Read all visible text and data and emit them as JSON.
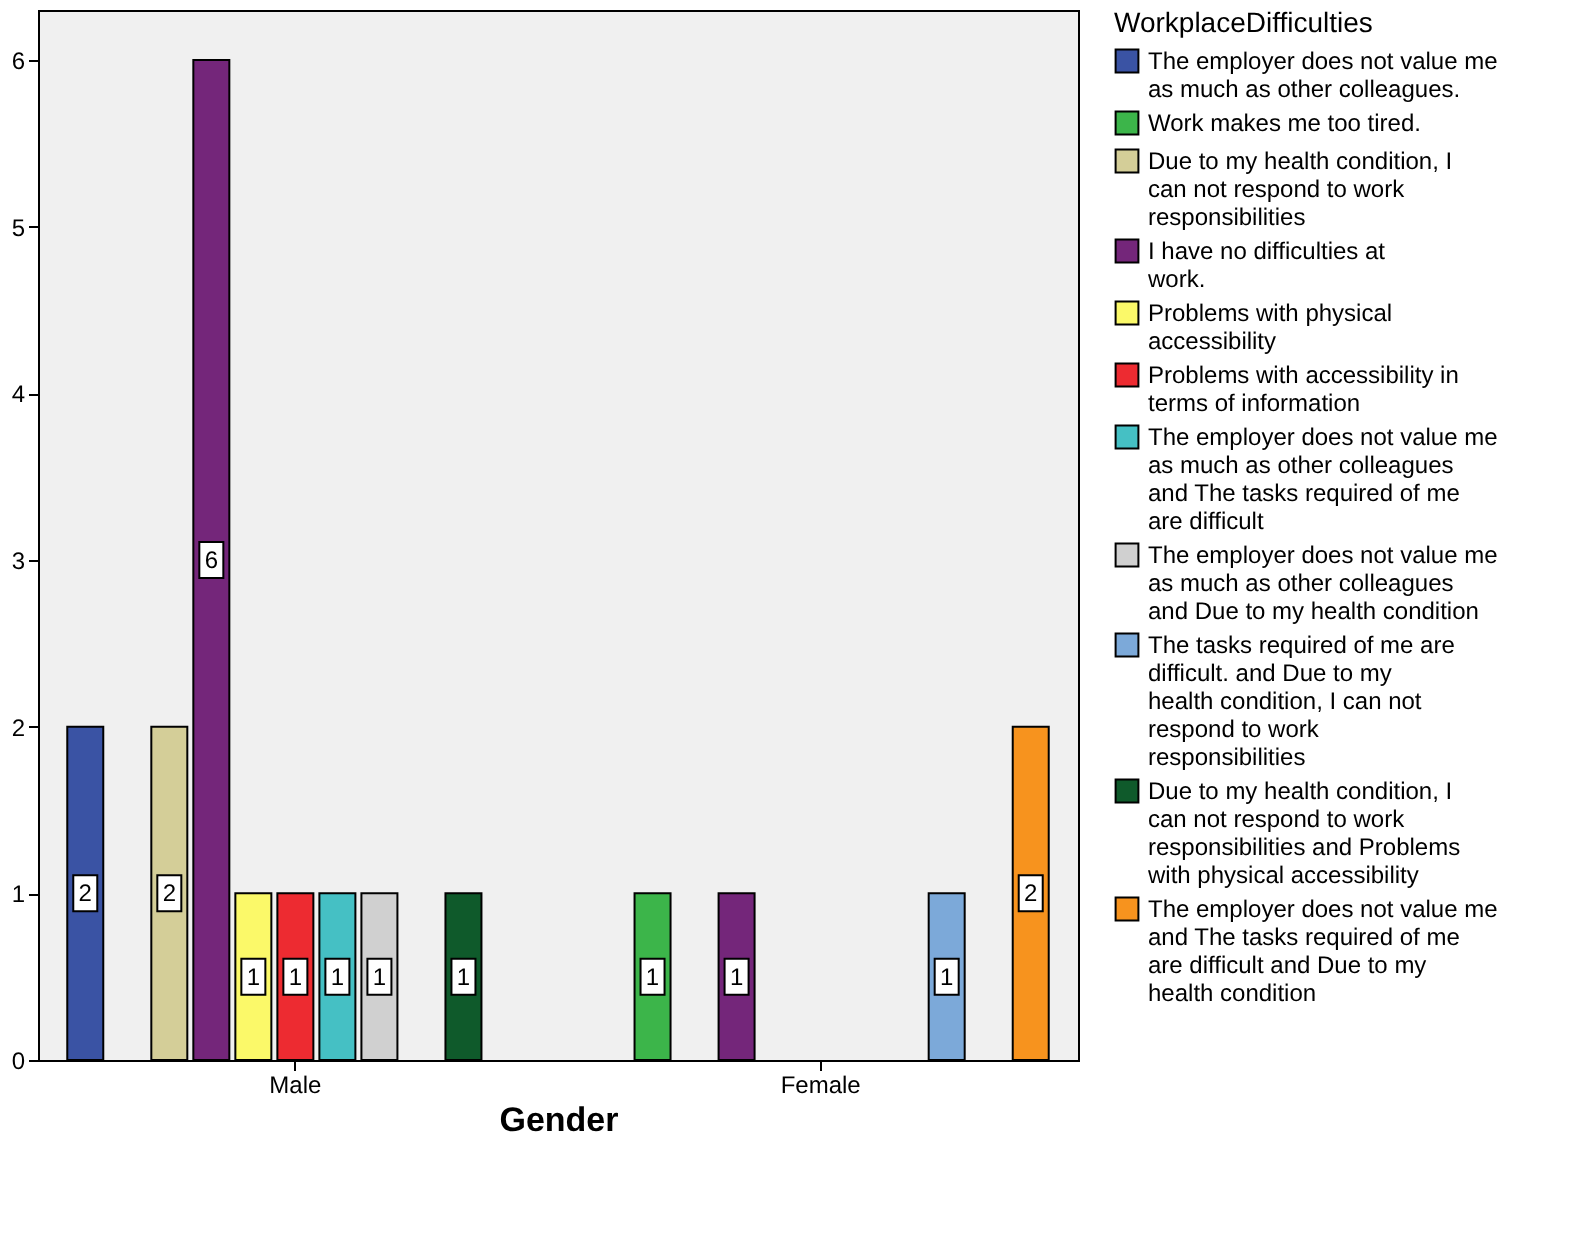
{
  "chart_data": {
    "type": "bar",
    "xlabel": "Gender",
    "legend_title": "WorkplaceDifficulties",
    "categories": [
      "Male",
      "Female"
    ],
    "series": [
      {
        "name": "The employer does not value me as much as other colleagues.",
        "color": "#3a53a4",
        "values": [
          2,
          null
        ]
      },
      {
        "name": "Work makes me too tired.",
        "color": "#3cb54a",
        "values": [
          null,
          1
        ]
      },
      {
        "name": "Due to my health condition, I can not respond to work responsibilities",
        "color": "#d4ce98",
        "values": [
          2,
          null
        ]
      },
      {
        "name": "I have no difficulties at work.",
        "color": "#74267a",
        "values": [
          6,
          1
        ]
      },
      {
        "name": "Problems with physical accessibility",
        "color": "#fbf969",
        "values": [
          1,
          null
        ]
      },
      {
        "name": "Problems with accessibility in terms of information",
        "color": "#ed2b31",
        "values": [
          1,
          null
        ]
      },
      {
        "name": "The employer does not value me as much as other colleagues and The tasks required of me are difficult",
        "color": "#45c0c4",
        "values": [
          1,
          null
        ]
      },
      {
        "name": "The employer does not value me as much as other colleagues and Due to my health condition",
        "color": "#d0d0d0",
        "values": [
          1,
          null
        ]
      },
      {
        "name": "The tasks required of me are difficult. and Due to my health condition, I can not respond to work responsibilities",
        "color": "#7ca9d9",
        "values": [
          null,
          1
        ]
      },
      {
        "name": "Due to my health condition, I can not respond to work responsibilities and Problems with physical accessibility",
        "color": "#0f5a2b",
        "values": [
          1,
          null
        ]
      },
      {
        "name": "The employer does not value me and The tasks required of me are difficult and Due to my health condition",
        "color": "#f7931e",
        "values": [
          null,
          2
        ]
      }
    ],
    "ylim": [
      0,
      6.3
    ],
    "yticks": [
      0,
      1,
      2,
      3,
      4,
      5,
      6
    ],
    "grid": false,
    "legend": "right",
    "data_labels": true
  }
}
